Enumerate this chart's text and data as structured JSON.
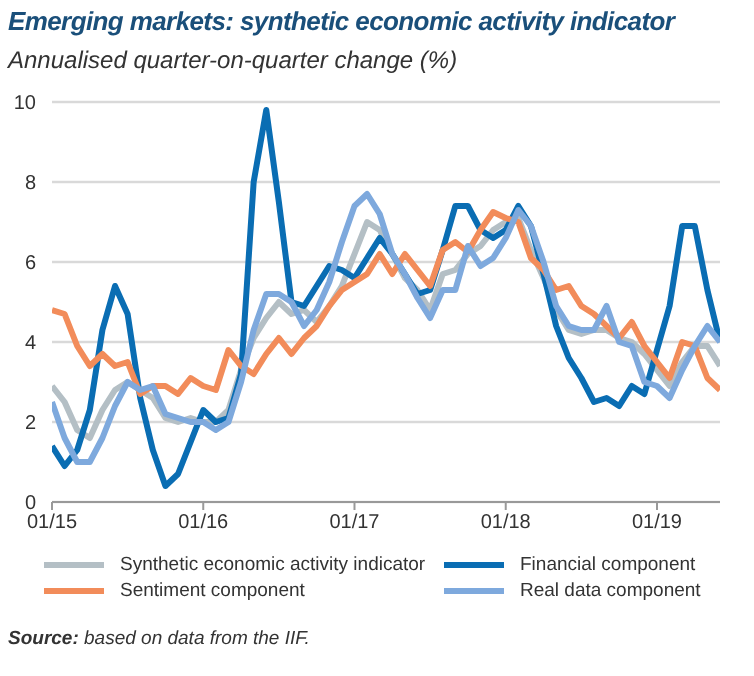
{
  "chart_data": {
    "type": "line",
    "title": "Emerging markets: synthetic economic activity indicator",
    "subtitle": "Annualised quarter-on-quarter change (%)",
    "x": [
      "2015-01",
      "2015-02",
      "2015-03",
      "2015-04",
      "2015-05",
      "2015-06",
      "2015-07",
      "2015-08",
      "2015-09",
      "2015-10",
      "2015-11",
      "2015-12",
      "2016-01",
      "2016-02",
      "2016-03",
      "2016-04",
      "2016-05",
      "2016-06",
      "2016-07",
      "2016-08",
      "2016-09",
      "2016-10",
      "2016-11",
      "2016-12",
      "2017-01",
      "2017-02",
      "2017-03",
      "2017-04",
      "2017-05",
      "2017-06",
      "2017-07",
      "2017-08",
      "2017-09",
      "2017-10",
      "2017-11",
      "2017-12",
      "2018-01",
      "2018-02",
      "2018-03",
      "2018-04",
      "2018-05",
      "2018-06",
      "2018-07",
      "2018-08",
      "2018-09",
      "2018-10",
      "2018-11",
      "2018-12",
      "2019-01",
      "2019-02",
      "2019-03",
      "2019-04",
      "2019-05",
      "2019-06"
    ],
    "series": [
      {
        "name": "Synthetic economic activity indicator",
        "color": "#b4bfc5",
        "values": [
          2.9,
          2.5,
          1.8,
          1.6,
          2.3,
          2.8,
          3.0,
          2.8,
          2.6,
          2.1,
          2.0,
          2.1,
          2.0,
          2.0,
          2.3,
          3.3,
          4.1,
          4.6,
          5.0,
          4.7,
          4.8,
          4.5,
          4.9,
          5.4,
          6.2,
          7.0,
          6.8,
          6.2,
          5.6,
          5.3,
          4.8,
          5.7,
          5.8,
          6.2,
          6.4,
          6.8,
          7.0,
          7.1,
          6.3,
          5.6,
          4.8,
          4.3,
          4.2,
          4.3,
          4.3,
          4.1,
          4.0,
          3.7,
          3.3,
          2.9,
          3.5,
          3.9,
          3.9,
          3.4
        ]
      },
      {
        "name": "Financial component",
        "color": "#0a6db3",
        "values": [
          1.4,
          0.9,
          1.3,
          2.3,
          4.3,
          5.4,
          4.7,
          2.6,
          1.3,
          0.4,
          0.7,
          1.5,
          2.3,
          2.0,
          2.1,
          3.2,
          8.0,
          9.8,
          7.5,
          5.0,
          4.9,
          5.4,
          5.9,
          5.8,
          5.6,
          6.1,
          6.6,
          6.2,
          5.7,
          5.2,
          5.3,
          6.3,
          7.4,
          7.4,
          6.8,
          6.6,
          6.8,
          7.4,
          6.9,
          5.7,
          4.4,
          3.6,
          3.1,
          2.5,
          2.6,
          2.4,
          2.9,
          2.7,
          3.8,
          4.9,
          6.9,
          6.9,
          5.3,
          4.0
        ]
      },
      {
        "name": "Sentiment component",
        "color": "#f28c5a",
        "values": [
          4.8,
          4.7,
          3.9,
          3.4,
          3.7,
          3.4,
          3.5,
          2.7,
          2.9,
          2.9,
          2.7,
          3.1,
          2.9,
          2.8,
          3.8,
          3.4,
          3.2,
          3.7,
          4.1,
          3.7,
          4.1,
          4.4,
          4.9,
          5.3,
          5.5,
          5.7,
          6.2,
          5.7,
          6.2,
          5.8,
          5.4,
          6.3,
          6.5,
          6.25,
          6.8,
          7.25,
          7.1,
          7.0,
          6.1,
          5.8,
          5.3,
          5.4,
          4.9,
          4.7,
          4.4,
          4.1,
          4.5,
          3.9,
          3.5,
          3.1,
          4.0,
          3.9,
          3.1,
          2.8
        ]
      },
      {
        "name": "Real data component",
        "color": "#7ea9dd",
        "values": [
          2.5,
          1.6,
          1.0,
          1.0,
          1.6,
          2.4,
          3.0,
          2.8,
          2.9,
          2.2,
          2.1,
          2.0,
          2.0,
          1.8,
          2.0,
          3.0,
          4.3,
          5.2,
          5.2,
          5.0,
          4.4,
          4.8,
          5.5,
          6.5,
          7.4,
          7.7,
          7.2,
          6.2,
          5.7,
          5.1,
          4.6,
          5.3,
          5.3,
          6.4,
          5.9,
          6.1,
          6.6,
          7.3,
          6.9,
          6.0,
          4.9,
          4.4,
          4.3,
          4.3,
          4.9,
          4.0,
          3.9,
          3.0,
          2.9,
          2.6,
          3.3,
          3.9,
          4.4,
          4.0
        ]
      }
    ],
    "xlim": [
      "2015-01",
      "2019-06"
    ],
    "xticks": [
      {
        "value": "2015-01",
        "label": "01/15"
      },
      {
        "value": "2016-01",
        "label": "01/16"
      },
      {
        "value": "2017-01",
        "label": "01/17"
      },
      {
        "value": "2018-01",
        "label": "01/18"
      },
      {
        "value": "2019-01",
        "label": "01/19"
      }
    ],
    "ylim": [
      0,
      10
    ],
    "yticks": [
      0,
      2,
      4,
      6,
      8,
      10
    ],
    "grid": "y",
    "legend": "bottom",
    "marker": "none",
    "line_style": "solid",
    "annotations": [
      "Source: based on data from the IIF."
    ]
  }
}
